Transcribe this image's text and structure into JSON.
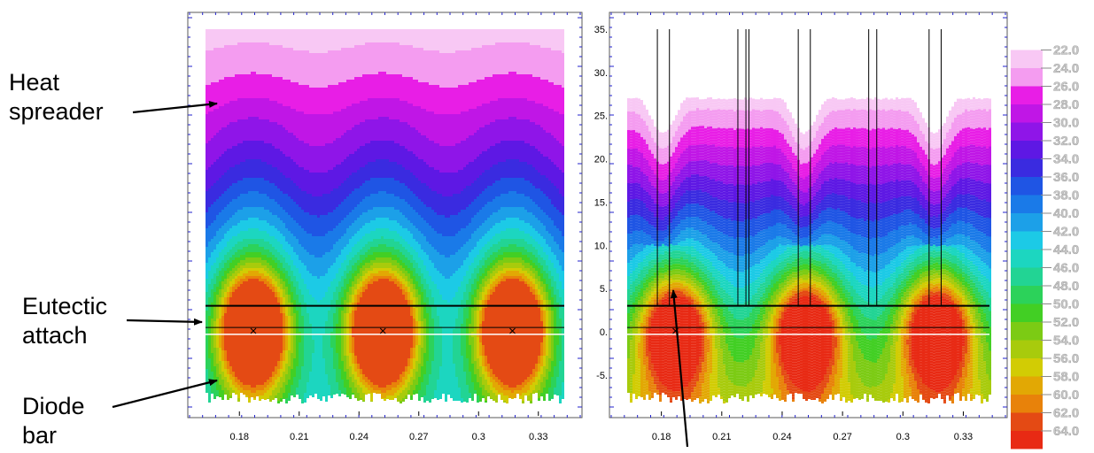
{
  "chart_data": [
    {
      "type": "heatmap",
      "panel": "left",
      "x_ticks": [
        "0.18",
        "0.21",
        "0.24",
        "0.27",
        "0.3",
        "0.33"
      ],
      "xlim": [
        0.163,
        0.343
      ],
      "ylim": [
        -8.5,
        35
      ],
      "attach_line_y": 3.0,
      "bar_top_y": 0.5,
      "bar_bottom_y": -0.5,
      "hot_spots_x": [
        0.187,
        0.252,
        0.317
      ],
      "temperature_range": [
        28,
        64
      ],
      "annotations": [
        {
          "text": "Heat spreader",
          "lines": [
            "Heat",
            "spreader"
          ]
        },
        {
          "text": "Eutectic attach",
          "lines": [
            "Eutectic",
            "attach"
          ]
        },
        {
          "text": "Diode bar",
          "lines": [
            "Diode",
            "bar"
          ]
        }
      ]
    },
    {
      "type": "heatmap",
      "panel": "right",
      "x_ticks": [
        "0.18",
        "0.21",
        "0.24",
        "0.27",
        "0.3",
        "0.33"
      ],
      "y_ticks": [
        "-5.",
        "0.",
        "5.",
        "10.",
        "15.",
        "20.",
        "25.",
        "30.",
        "35."
      ],
      "xlim": [
        0.163,
        0.343
      ],
      "ylim": [
        -8.5,
        35
      ],
      "channel_walls_x": [
        0.178,
        0.184,
        0.218,
        0.222,
        0.2235,
        0.248,
        0.254,
        0.283,
        0.287,
        0.313,
        0.319
      ],
      "temperature_range": [
        22,
        60
      ]
    }
  ],
  "colorbar": {
    "labels": [
      "22.0",
      "24.0",
      "26.0",
      "28.0",
      "30.0",
      "32.0",
      "34.0",
      "36.0",
      "38.0",
      "40.0",
      "42.0",
      "44.0",
      "46.0",
      "48.0",
      "50.0",
      "52.0",
      "54.0",
      "56.0",
      "58.0",
      "60.0",
      "62.0",
      "64.0"
    ],
    "colors": [
      "#ffffff",
      "#f8c8f4",
      "#f49cf0",
      "#e81ee6",
      "#c016e6",
      "#8f15e8",
      "#5e18e4",
      "#3a2be0",
      "#1f55e4",
      "#1a7ae8",
      "#1ca0e8",
      "#1ccae6",
      "#1cd6c0",
      "#22d494",
      "#2cd25a",
      "#42cf24",
      "#7ccb14",
      "#a8cb0c",
      "#d2cc04",
      "#e2a804",
      "#e8820a",
      "#e44a14",
      "#e82a14"
    ]
  }
}
